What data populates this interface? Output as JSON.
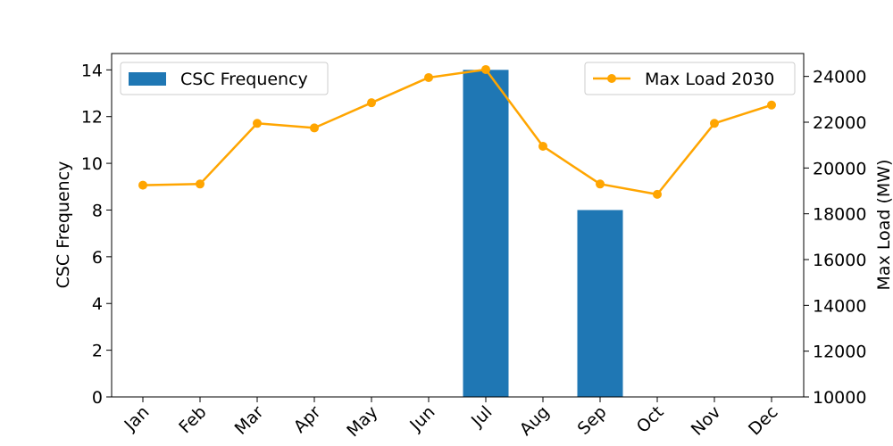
{
  "chart_data": {
    "type": "bar+line",
    "categories": [
      "Jan",
      "Feb",
      "Mar",
      "Apr",
      "May",
      "Jun",
      "Jul",
      "Aug",
      "Sep",
      "Oct",
      "Nov",
      "Dec"
    ],
    "bar_series": {
      "name": "CSC Frequency",
      "color": "#1f77b4",
      "values": [
        0,
        0,
        0,
        0,
        0,
        0,
        14,
        0,
        8,
        0,
        0,
        0
      ]
    },
    "line_series": {
      "name": "Max Load 2030",
      "color": "#ffa500",
      "values": [
        19250,
        19300,
        21950,
        21750,
        22850,
        23950,
        24300,
        20950,
        19300,
        18850,
        21950,
        22750
      ]
    },
    "ylabel_left": "CSC Frequency",
    "ylabel_right": "Max Load (MW)",
    "ylim_left": [
      0,
      14.7
    ],
    "ylim_right": [
      10000,
      25000
    ],
    "yticks_left": [
      "0",
      "2",
      "4",
      "6",
      "8",
      "10",
      "12",
      "14"
    ],
    "yticks_right": [
      "10000",
      "12000",
      "14000",
      "16000",
      "18000",
      "20000",
      "22000",
      "24000"
    ],
    "grid": false,
    "legend_bar_position": "top-left",
    "legend_line_position": "top-right"
  }
}
